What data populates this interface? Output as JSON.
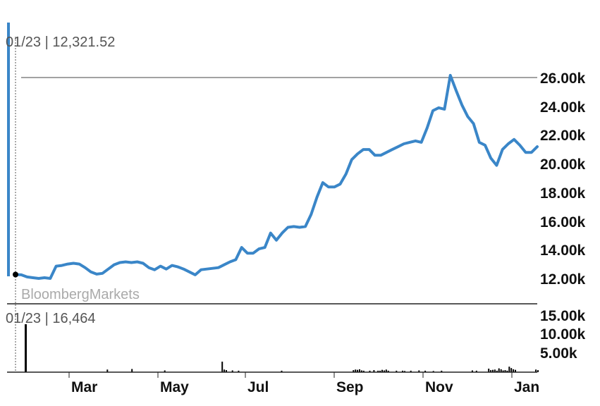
{
  "readout_price": "01/23 | 12,321.52",
  "readout_volume": "01/23 | 16,464",
  "brand": "BloombergMarkets",
  "colors": {
    "line": "#3a86c8",
    "volume": "#000000",
    "axis": "#222222",
    "reference": "#444444"
  },
  "chart_data": [
    {
      "type": "line",
      "title": "",
      "xlabel": "",
      "ylabel": "",
      "x_tick_labels": [
        "Mar",
        "May",
        "Jul",
        "Sep",
        "Nov",
        "Jan"
      ],
      "y_tick_labels": [
        "26.00k",
        "24.00k",
        "22.00k",
        "20.00k",
        "18.00k",
        "16.00k",
        "14.00k",
        "12.00k"
      ],
      "ylim": [
        11500,
        26800
      ],
      "reference_line": 26000,
      "series": [
        {
          "values": [
            12320,
            12300,
            12150,
            12100,
            12050,
            12100,
            12050,
            12900,
            12950,
            13050,
            13100,
            13050,
            12800,
            12500,
            12350,
            12400,
            12700,
            13000,
            13150,
            13200,
            13150,
            13200,
            13100,
            12800,
            12650,
            12900,
            12700,
            12950,
            12850,
            12700,
            12500,
            12300,
            12650,
            12700,
            12750,
            12800,
            13000,
            13200,
            13350,
            14200,
            13800,
            13800,
            14100,
            14200,
            15200,
            14700,
            15200,
            15600,
            15650,
            15600,
            15650,
            16500,
            17700,
            18700,
            18400,
            18400,
            18600,
            19300,
            20300,
            20700,
            21000,
            21000,
            20600,
            20600,
            20800,
            21000,
            21200,
            21400,
            21500,
            21600,
            21500,
            22500,
            23700,
            23900,
            23800,
            26150,
            25100,
            24100,
            23300,
            22800,
            21500,
            21300,
            20400,
            19900,
            21000,
            21400,
            21700,
            21300,
            20800,
            20800,
            21200
          ]
        }
      ]
    },
    {
      "type": "bar",
      "title": "",
      "y_tick_labels": [
        "15.00k",
        "10.00k",
        "5.00k"
      ],
      "ylim": [
        0,
        16464
      ],
      "values": [
        16464,
        0,
        0,
        0,
        0,
        0,
        0,
        0,
        0,
        0,
        0,
        0,
        0,
        0,
        0,
        0,
        0,
        0,
        0,
        0,
        0,
        0,
        0,
        0,
        0,
        0,
        0,
        0,
        0,
        0,
        0,
        0,
        0,
        0,
        0,
        0,
        0,
        0,
        0,
        0,
        900,
        0,
        0,
        0,
        0,
        0,
        0,
        0,
        0,
        0,
        0,
        0,
        1100,
        0,
        0,
        0,
        0,
        0,
        0,
        0,
        0,
        0,
        0,
        0,
        0,
        0,
        0,
        0,
        600,
        0,
        0,
        0,
        0,
        0,
        0,
        0,
        0,
        0,
        0,
        0,
        0,
        0,
        0,
        0,
        0,
        0,
        0,
        0,
        0,
        0,
        0,
        0,
        0,
        0,
        0,
        0,
        3600,
        900,
        700,
        0,
        0,
        600,
        0,
        0,
        500,
        0,
        0,
        0,
        0,
        0,
        0,
        0,
        0,
        0,
        0,
        0,
        0,
        0,
        0,
        0,
        0,
        0,
        0,
        0,
        0,
        500,
        0,
        0,
        0,
        0,
        0,
        0,
        0,
        0,
        0,
        0,
        0,
        0,
        0,
        0,
        0,
        0,
        0,
        0,
        0,
        0,
        0,
        0,
        0,
        0,
        0,
        0,
        0,
        0,
        0,
        0,
        0,
        0,
        0,
        0,
        700,
        900,
        800,
        1000,
        600,
        500,
        0,
        0,
        500,
        0,
        700,
        0,
        500,
        500,
        800,
        600,
        900,
        500,
        0,
        0,
        0,
        500,
        0,
        0,
        500,
        400,
        0,
        0,
        500,
        0,
        0,
        0,
        600,
        0,
        0,
        500,
        0,
        0,
        0,
        400,
        0,
        0,
        0,
        500,
        0,
        0,
        0,
        0,
        0,
        0,
        0,
        0,
        0,
        0,
        0,
        0,
        0,
        0,
        600,
        0,
        500,
        0,
        0,
        0,
        0,
        0,
        1200,
        700,
        800,
        900,
        500,
        1300,
        1000,
        600,
        700,
        500,
        1900,
        1400,
        1000,
        800,
        0,
        0,
        0,
        0,
        0,
        0,
        0,
        0,
        0,
        900,
        700
      ]
    }
  ]
}
